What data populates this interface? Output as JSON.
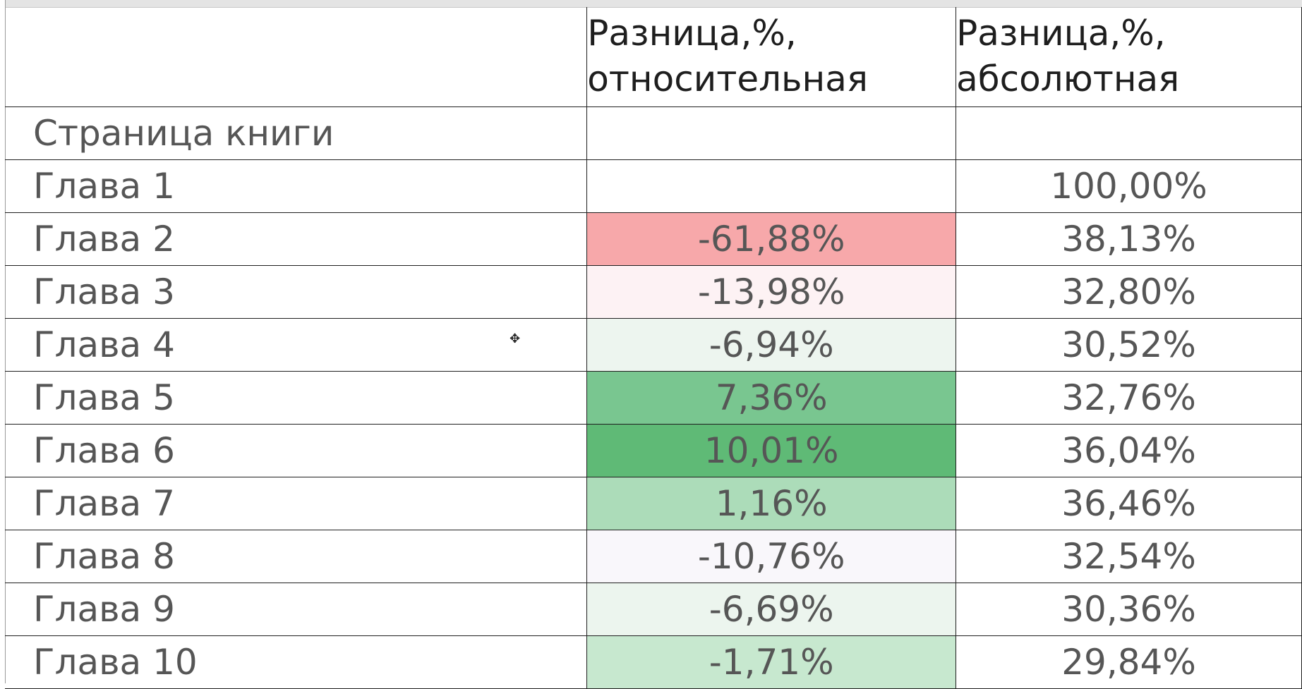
{
  "header": {
    "relative_label": "Разница,%, относительная",
    "absolute_label": "Разница,%, абсолютная"
  },
  "subheader": {
    "label": "Страница книги"
  },
  "rows": [
    {
      "name": "Глава 1",
      "relative": "",
      "absolute": "100,00%",
      "color": "#ffffff"
    },
    {
      "name": "Глава 2",
      "relative": "-61,88%",
      "absolute": "38,13%",
      "color": "#f7a8aa"
    },
    {
      "name": "Глава 3",
      "relative": "-13,98%",
      "absolute": "32,80%",
      "color": "#fdf2f4"
    },
    {
      "name": "Глава 4",
      "relative": "-6,94%",
      "absolute": "30,52%",
      "color": "#edf5ef"
    },
    {
      "name": "Глава 5",
      "relative": "7,36%",
      "absolute": "32,76%",
      "color": "#79c690"
    },
    {
      "name": "Глава 6",
      "relative": "10,01%",
      "absolute": "36,04%",
      "color": "#5fba76"
    },
    {
      "name": "Глава 7",
      "relative": "1,16%",
      "absolute": "36,46%",
      "color": "#acdcb9"
    },
    {
      "name": "Глава 8",
      "relative": "-10,76%",
      "absolute": "32,54%",
      "color": "#f9f7fb"
    },
    {
      "name": "Глава 9",
      "relative": "-6,69%",
      "absolute": "30,36%",
      "color": "#ecf5ee"
    },
    {
      "name": "Глава 10",
      "relative": "-1,71%",
      "absolute": "29,84%",
      "color": "#c7e8cf"
    }
  ],
  "cursor_icon": "move-cursor-icon"
}
